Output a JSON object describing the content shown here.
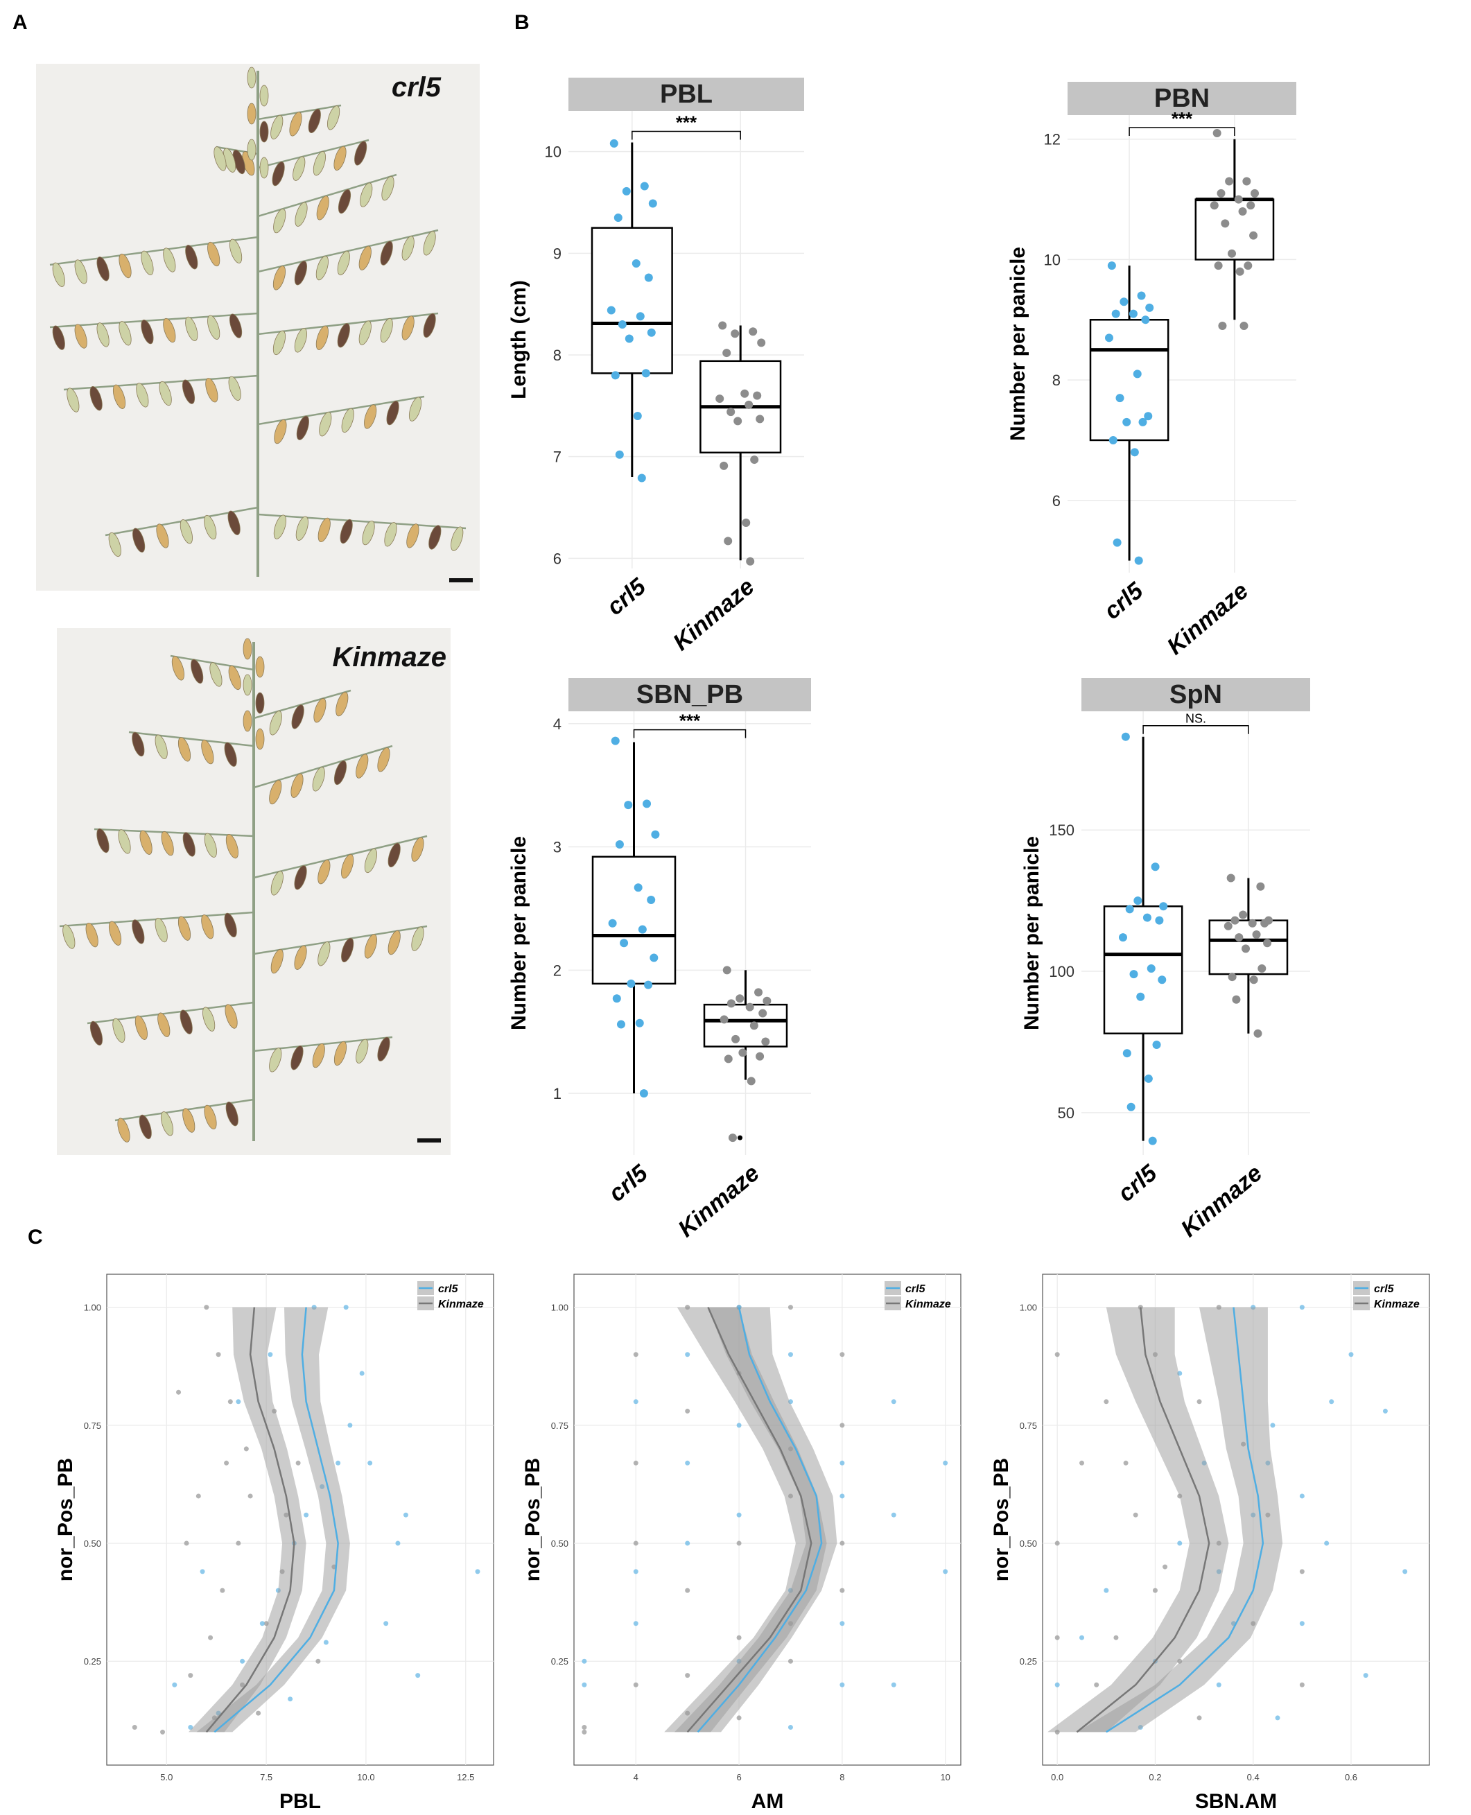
{
  "panels": {
    "a": "A",
    "b": "B",
    "c": "C"
  },
  "photos": {
    "top_label": "crl5",
    "bottom_label": "Kinmaze",
    "colors": {
      "background": "#f0efec",
      "stem": "#8fa085",
      "grain_green": "#cdd2a6",
      "grain_gold": "#d8b06c",
      "grain_dark": "#6b4a3a"
    }
  },
  "colors": {
    "crl5": "#4faee3",
    "kinmaze": "#8c8c8c",
    "strip": "#c4c4c4",
    "grid": "#ebebeb"
  },
  "chart_data": [
    {
      "id": "PBL",
      "type": "box",
      "title": "PBL",
      "ylabel": "Length (cm)",
      "categories": [
        "crl5",
        "Kinmaze"
      ],
      "ylim": [
        5.9,
        10.4
      ],
      "yticks": [
        6,
        7,
        8,
        9,
        10
      ],
      "significance": "***",
      "boxes": [
        {
          "min": 6.8,
          "q1": 7.82,
          "median": 8.31,
          "q3": 9.25,
          "max": 10.09
        },
        {
          "min": 5.98,
          "q1": 7.04,
          "median": 7.49,
          "q3": 7.94,
          "max": 8.29
        }
      ],
      "points": [
        [
          10.08,
          9.66,
          9.61,
          9.49,
          9.35,
          8.9,
          8.76,
          8.44,
          8.38,
          8.3,
          8.22,
          8.16,
          7.82,
          7.8,
          7.4,
          7.02,
          6.79
        ],
        [
          8.29,
          8.23,
          8.21,
          8.12,
          8.02,
          7.62,
          7.6,
          7.57,
          7.51,
          7.44,
          7.37,
          7.35,
          6.97,
          6.91,
          6.35,
          6.17,
          5.97
        ]
      ],
      "outliers": [
        [],
        []
      ]
    },
    {
      "id": "PBN",
      "type": "box",
      "title": "PBN",
      "ylabel": "Number per panicle",
      "categories": [
        "crl5",
        "Kinmaze"
      ],
      "ylim": [
        4.8,
        12.4
      ],
      "yticks": [
        6,
        8,
        10,
        12
      ],
      "significance": "***",
      "boxes": [
        {
          "min": 5.0,
          "q1": 7.0,
          "median": 8.5,
          "q3": 9.0,
          "max": 9.9
        },
        {
          "min": 9.0,
          "q1": 10.0,
          "median": 11.0,
          "q3": 11.0,
          "max": 12.0
        }
      ],
      "points": [
        [
          9.9,
          9.4,
          9.3,
          9.2,
          9.1,
          9.1,
          9.0,
          8.7,
          8.1,
          7.7,
          7.4,
          7.3,
          7.3,
          7.0,
          6.8,
          5.3,
          5.0
        ],
        [
          12.1,
          11.3,
          11.3,
          11.1,
          11.1,
          11.0,
          10.9,
          10.9,
          10.8,
          10.6,
          10.4,
          10.1,
          9.9,
          9.9,
          9.8,
          8.9,
          8.9
        ]
      ],
      "outliers": [
        [],
        []
      ]
    },
    {
      "id": "SBN_PB",
      "type": "box",
      "title": "SBN_PB",
      "ylabel": "Number per panicle",
      "categories": [
        "crl5",
        "Kinmaze"
      ],
      "ylim": [
        0.5,
        4.1
      ],
      "yticks": [
        1,
        2,
        3,
        4
      ],
      "significance": "***",
      "boxes": [
        {
          "min": 1.0,
          "q1": 1.89,
          "median": 2.28,
          "q3": 2.92,
          "max": 3.85
        },
        {
          "min": 1.11,
          "q1": 1.38,
          "median": 1.59,
          "q3": 1.72,
          "max": 2.0
        }
      ],
      "points": [
        [
          3.86,
          3.35,
          3.34,
          3.1,
          3.02,
          2.67,
          2.57,
          2.38,
          2.33,
          2.22,
          2.1,
          1.89,
          1.88,
          1.77,
          1.57,
          1.56,
          1.0
        ],
        [
          2.0,
          1.82,
          1.77,
          1.75,
          1.73,
          1.7,
          1.65,
          1.6,
          1.55,
          1.44,
          1.42,
          1.33,
          1.3,
          1.28,
          1.1,
          0.64
        ]
      ],
      "outliers": [
        [],
        [
          0.64
        ]
      ]
    },
    {
      "id": "SpN",
      "type": "box",
      "title": "SpN",
      "ylabel": "Number per panicle",
      "categories": [
        "crl5",
        "Kinmaze"
      ],
      "ylim": [
        35,
        192
      ],
      "yticks": [
        50,
        100,
        150
      ],
      "significance": "NS.",
      "boxes": [
        {
          "min": 40,
          "q1": 78,
          "median": 106,
          "q3": 123,
          "max": 183
        },
        {
          "min": 78,
          "q1": 99,
          "median": 111,
          "q3": 118,
          "max": 133
        }
      ],
      "points": [
        [
          183,
          137,
          125,
          123,
          122,
          119,
          118,
          112,
          101,
          99,
          97,
          91,
          74,
          71,
          62,
          52,
          40
        ],
        [
          133,
          130,
          120,
          118,
          118,
          117,
          117,
          116,
          113,
          112,
          110,
          108,
          101,
          98,
          97,
          90,
          78
        ]
      ],
      "outliers": [
        [],
        []
      ]
    },
    {
      "id": "C1",
      "type": "scatter",
      "xlabel": "PBL",
      "ylabel": "nor_Pos_PB",
      "xlim": [
        3.5,
        13.2
      ],
      "ylim": [
        0.03,
        1.07
      ],
      "xticks": [
        5.0,
        7.5,
        10.0,
        12.5
      ],
      "xtick_labels": [
        "5.0",
        "7.5",
        "10.0",
        "12.5"
      ],
      "yticks": [
        0.25,
        0.5,
        0.75,
        1.0
      ],
      "ytick_labels": [
        "0.25",
        "0.50",
        "0.75",
        "1.00"
      ],
      "legend": [
        "crl5",
        "Kinmaze"
      ],
      "curves": {
        "y": [
          0.1,
          0.2,
          0.3,
          0.4,
          0.5,
          0.6,
          0.7,
          0.8,
          0.9,
          1.0
        ],
        "crl5": [
          6.2,
          7.6,
          8.6,
          9.2,
          9.3,
          9.1,
          8.8,
          8.5,
          8.4,
          8.5
        ],
        "kinmaze": [
          6.0,
          7.0,
          7.7,
          8.1,
          8.2,
          8.0,
          7.7,
          7.3,
          7.1,
          7.2
        ],
        "band": [
          0.45,
          0.35,
          0.3,
          0.3,
          0.3,
          0.3,
          0.32,
          0.36,
          0.42,
          0.55
        ]
      },
      "points": {
        "crl5": [
          [
            5.2,
            0.2
          ],
          [
            5.6,
            0.11
          ],
          [
            6.3,
            0.14
          ],
          [
            6.9,
            0.25
          ],
          [
            7.4,
            0.33
          ],
          [
            7.8,
            0.4
          ],
          [
            8.2,
            0.5
          ],
          [
            8.5,
            0.56
          ],
          [
            8.9,
            0.62
          ],
          [
            9.3,
            0.67
          ],
          [
            9.6,
            0.75
          ],
          [
            10.1,
            0.67
          ],
          [
            10.8,
            0.5
          ],
          [
            11.3,
            0.22
          ],
          [
            12.8,
            0.44
          ],
          [
            9.9,
            0.86
          ],
          [
            8.7,
            1.0
          ],
          [
            9.5,
            1.0
          ],
          [
            7.6,
            0.9
          ],
          [
            6.8,
            0.8
          ],
          [
            5.9,
            0.44
          ],
          [
            10.5,
            0.33
          ],
          [
            8.1,
            0.17
          ],
          [
            9.0,
            0.29
          ],
          [
            11.0,
            0.56
          ]
        ],
        "kinmaze": [
          [
            4.2,
            0.11
          ],
          [
            4.9,
            0.1
          ],
          [
            5.6,
            0.22
          ],
          [
            6.1,
            0.3
          ],
          [
            6.4,
            0.4
          ],
          [
            6.8,
            0.5
          ],
          [
            7.1,
            0.6
          ],
          [
            7.0,
            0.7
          ],
          [
            6.6,
            0.8
          ],
          [
            6.3,
            0.9
          ],
          [
            6.0,
            1.0
          ],
          [
            7.5,
            0.33
          ],
          [
            7.9,
            0.44
          ],
          [
            8.3,
            0.67
          ],
          [
            8.8,
            0.25
          ],
          [
            5.3,
            0.82
          ],
          [
            5.8,
            0.6
          ],
          [
            7.3,
            0.14
          ],
          [
            6.2,
            0.13
          ],
          [
            9.2,
            0.45
          ],
          [
            8.0,
            0.56
          ],
          [
            6.5,
            0.67
          ],
          [
            7.7,
            0.78
          ],
          [
            5.5,
            0.5
          ],
          [
            6.9,
            0.2
          ]
        ]
      }
    },
    {
      "id": "C2",
      "type": "scatter",
      "xlabel": "AM",
      "ylabel": "nor_Pos_PB",
      "xlim": [
        2.8,
        10.3
      ],
      "ylim": [
        0.03,
        1.07
      ],
      "xticks": [
        4,
        6,
        8,
        10
      ],
      "xtick_labels": [
        "4",
        "6",
        "8",
        "10"
      ],
      "yticks": [
        0.25,
        0.5,
        0.75,
        1.0
      ],
      "ytick_labels": [
        "0.25",
        "0.50",
        "0.75",
        "1.00"
      ],
      "legend": [
        "crl5",
        "Kinmaze"
      ],
      "curves": {
        "y": [
          0.1,
          0.2,
          0.3,
          0.4,
          0.5,
          0.6,
          0.7,
          0.8,
          0.9,
          1.0
        ],
        "crl5": [
          5.2,
          6.0,
          6.7,
          7.3,
          7.6,
          7.5,
          7.1,
          6.6,
          6.2,
          6.0
        ],
        "kinmaze": [
          5.0,
          5.8,
          6.6,
          7.2,
          7.4,
          7.2,
          6.8,
          6.3,
          5.8,
          5.4
        ],
        "band": [
          0.45,
          0.38,
          0.32,
          0.3,
          0.3,
          0.32,
          0.34,
          0.38,
          0.45,
          0.6
        ]
      },
      "points": {
        "crl5": [
          [
            3,
            0.25
          ],
          [
            3,
            0.2
          ],
          [
            4,
            0.33
          ],
          [
            4,
            0.44
          ],
          [
            5,
            0.5
          ],
          [
            5,
            0.67
          ],
          [
            6,
            0.56
          ],
          [
            6,
            0.75
          ],
          [
            7,
            0.8
          ],
          [
            7,
            0.4
          ],
          [
            8,
            0.6
          ],
          [
            8,
            0.67
          ],
          [
            9,
            0.56
          ],
          [
            9,
            0.8
          ],
          [
            10,
            0.44
          ],
          [
            10,
            0.67
          ],
          [
            6,
            0.25
          ],
          [
            7,
            0.11
          ],
          [
            8,
            0.33
          ],
          [
            5,
            0.9
          ],
          [
            6,
            1.0
          ],
          [
            4,
            0.8
          ],
          [
            7,
            0.9
          ],
          [
            8,
            0.2
          ],
          [
            9,
            0.2
          ]
        ],
        "kinmaze": [
          [
            3,
            0.1
          ],
          [
            3,
            0.11
          ],
          [
            4,
            0.5
          ],
          [
            4,
            0.2
          ],
          [
            5,
            0.22
          ],
          [
            5,
            0.4
          ],
          [
            5,
            0.78
          ],
          [
            6,
            0.3
          ],
          [
            6,
            0.5
          ],
          [
            6,
            0.86
          ],
          [
            7,
            0.6
          ],
          [
            7,
            0.7
          ],
          [
            7,
            0.25
          ],
          [
            8,
            0.5
          ],
          [
            8,
            0.9
          ],
          [
            8,
            0.75
          ],
          [
            6,
            1.0
          ],
          [
            7,
            1.0
          ],
          [
            5,
            0.14
          ],
          [
            4,
            0.67
          ],
          [
            6,
            0.13
          ],
          [
            7,
            0.33
          ],
          [
            8,
            0.4
          ],
          [
            5,
            1.0
          ],
          [
            4,
            0.9
          ]
        ]
      }
    },
    {
      "id": "C3",
      "type": "scatter",
      "xlabel": "SBN.AM",
      "ylabel": "nor_Pos_PB",
      "xlim": [
        -0.03,
        0.76
      ],
      "ylim": [
        0.03,
        1.07
      ],
      "xticks": [
        0.0,
        0.2,
        0.4,
        0.6
      ],
      "xtick_labels": [
        "0.0",
        "0.2",
        "0.4",
        "0.6"
      ],
      "yticks": [
        0.25,
        0.5,
        0.75,
        1.0
      ],
      "ytick_labels": [
        "0.25",
        "0.50",
        "0.75",
        "1.00"
      ],
      "legend": [
        "crl5",
        "Kinmaze"
      ],
      "curves": {
        "y": [
          0.1,
          0.2,
          0.3,
          0.4,
          0.5,
          0.6,
          0.7,
          0.8,
          0.9,
          1.0
        ],
        "crl5": [
          0.1,
          0.25,
          0.35,
          0.4,
          0.42,
          0.41,
          0.39,
          0.38,
          0.37,
          0.36
        ],
        "kinmaze": [
          0.04,
          0.16,
          0.24,
          0.29,
          0.31,
          0.29,
          0.25,
          0.21,
          0.18,
          0.17
        ],
        "band": [
          0.06,
          0.05,
          0.045,
          0.04,
          0.04,
          0.04,
          0.045,
          0.05,
          0.06,
          0.07
        ]
      },
      "points": {
        "crl5": [
          [
            0.0,
            0.2
          ],
          [
            0.05,
            0.3
          ],
          [
            0.1,
            0.4
          ],
          [
            0.17,
            0.11
          ],
          [
            0.25,
            0.5
          ],
          [
            0.3,
            0.67
          ],
          [
            0.33,
            0.44
          ],
          [
            0.4,
            0.56
          ],
          [
            0.44,
            0.75
          ],
          [
            0.5,
            0.6
          ],
          [
            0.5,
            0.33
          ],
          [
            0.56,
            0.8
          ],
          [
            0.6,
            0.9
          ],
          [
            0.67,
            0.78
          ],
          [
            0.71,
            0.44
          ],
          [
            0.63,
            0.22
          ],
          [
            0.5,
            1.0
          ],
          [
            0.4,
            1.0
          ],
          [
            0.33,
            0.2
          ],
          [
            0.2,
            0.25
          ],
          [
            0.45,
            0.13
          ],
          [
            0.25,
            0.86
          ],
          [
            0.36,
            0.33
          ],
          [
            0.55,
            0.5
          ],
          [
            0.43,
            0.67
          ]
        ],
        "kinmaze": [
          [
            0.0,
            0.1
          ],
          [
            0.0,
            0.5
          ],
          [
            0.0,
            0.9
          ],
          [
            0.08,
            0.2
          ],
          [
            0.12,
            0.3
          ],
          [
            0.14,
            0.67
          ],
          [
            0.17,
            1.0
          ],
          [
            0.2,
            0.4
          ],
          [
            0.25,
            0.6
          ],
          [
            0.25,
            0.25
          ],
          [
            0.29,
            0.8
          ],
          [
            0.33,
            0.5
          ],
          [
            0.33,
            1.0
          ],
          [
            0.38,
            0.71
          ],
          [
            0.4,
            0.33
          ],
          [
            0.5,
            0.44
          ],
          [
            0.5,
            0.2
          ],
          [
            0.1,
            0.8
          ],
          [
            0.05,
            0.67
          ],
          [
            0.2,
            0.9
          ],
          [
            0.29,
            0.13
          ],
          [
            0.43,
            0.56
          ],
          [
            0.0,
            0.3
          ],
          [
            0.16,
            0.56
          ],
          [
            0.22,
            0.45
          ]
        ]
      }
    }
  ]
}
